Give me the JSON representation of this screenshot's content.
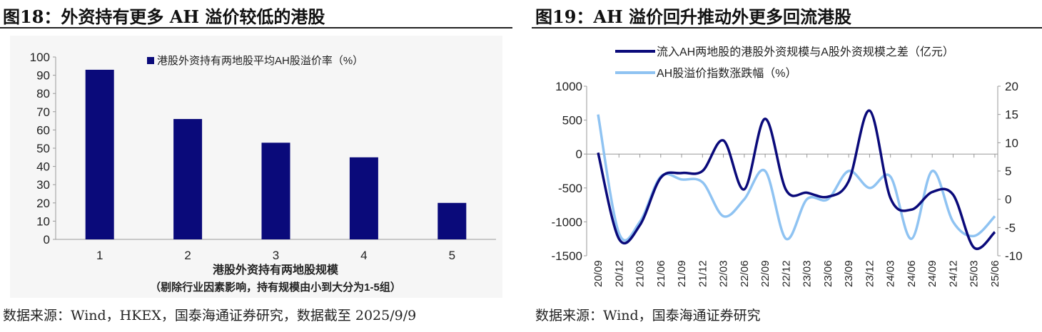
{
  "left": {
    "title": "图18：外资持有更多 AH 溢价较低的港股",
    "source": "数据来源：Wind，HKEX，国泰海通证券研究，数据截至 2025/9/9"
  },
  "right": {
    "title": "图19：AH 溢价回升推动外更多回流港股",
    "source": "数据来源：Wind，国泰海通证券研究"
  },
  "chart_data": [
    {
      "type": "bar",
      "title": "",
      "categories": [
        "1",
        "2",
        "3",
        "4",
        "5"
      ],
      "values": [
        93,
        66,
        53,
        45,
        20
      ],
      "legend": "港股外资持有两地股平均AH股溢价率（%）",
      "xlabel": "港股外资持有两地股规模",
      "xlabel_note": "（剔除行业因素影响，持有规模由小到大分为1-5组）",
      "ylim": [
        0,
        100
      ],
      "yticks": [
        0,
        10,
        20,
        30,
        40,
        50,
        60,
        70,
        80,
        90,
        100
      ],
      "color": "#0a0a7a"
    },
    {
      "type": "line",
      "categories": [
        "20/09",
        "20/12",
        "21/03",
        "21/06",
        "21/09",
        "21/12",
        "22/03",
        "22/06",
        "22/09",
        "22/12",
        "23/03",
        "23/06",
        "23/09",
        "23/12",
        "24/03",
        "24/06",
        "24/09",
        "24/12",
        "25/03",
        "25/06"
      ],
      "series": [
        {
          "name": "流入AH两地股的港股外资规模与A股外资规模之差（亿元）",
          "axis": "left",
          "color": "#0a0a7a",
          "values": [
            20,
            -1250,
            -1050,
            -350,
            -280,
            -250,
            200,
            -520,
            520,
            -530,
            -570,
            -630,
            -400,
            640,
            -650,
            -820,
            -560,
            -600,
            -1380,
            -1150
          ]
        },
        {
          "name": "AH股溢价指数涨跌幅（%）",
          "axis": "right",
          "color": "#8fc3f2",
          "values": [
            15,
            -6,
            -4,
            4,
            3.5,
            3,
            -3,
            0,
            5,
            -7,
            0,
            0,
            5,
            2,
            4,
            -7,
            5,
            -4,
            -6.5,
            -3
          ]
        }
      ],
      "ylim_left": [
        -1500,
        1000
      ],
      "yticks_left": [
        -1500,
        -1000,
        -500,
        0,
        500,
        1000
      ],
      "ylim_right": [
        -10,
        20
      ],
      "yticks_right": [
        -10,
        -5,
        0,
        5,
        10,
        15,
        20
      ]
    }
  ]
}
